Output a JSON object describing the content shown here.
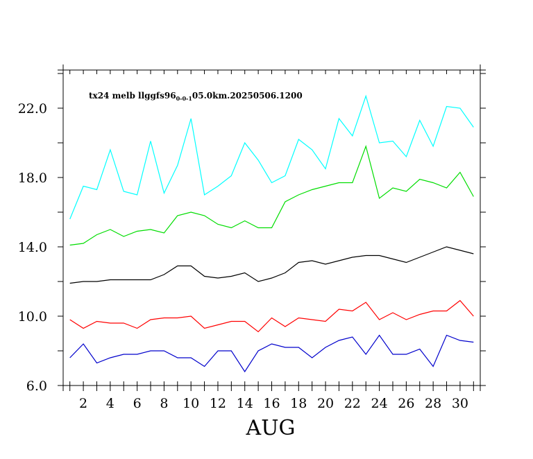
{
  "chart_data": {
    "type": "line",
    "title_main": "tx24 melb llggfs96",
    "title_sub": "0-0-1",
    "title_tail": "05.0km.20250506.1200",
    "xlabel": "AUG",
    "ylabel": "",
    "xlim": [
      0.5,
      31.5
    ],
    "ylim": [
      6.0,
      24.2
    ],
    "x_ticks_labeled": [
      2,
      4,
      6,
      8,
      10,
      12,
      14,
      16,
      18,
      20,
      22,
      24,
      26,
      28,
      30
    ],
    "x_tick_labels": [
      "2",
      "4",
      "6",
      "8",
      "10",
      "12",
      "14",
      "16",
      "18",
      "20",
      "22",
      "24",
      "26",
      "28",
      "30"
    ],
    "y_ticks": [
      6.0,
      10.0,
      14.0,
      18.0,
      22.0
    ],
    "y_tick_labels": [
      "6.0",
      "10.0",
      "14.0",
      "18.0",
      "22.0"
    ],
    "y_minor_ticks": [
      8.0,
      12.0,
      16.0,
      20.0,
      24.0
    ],
    "grid": false,
    "x": [
      1,
      2,
      3,
      4,
      5,
      6,
      7,
      8,
      9,
      10,
      11,
      12,
      13,
      14,
      15,
      16,
      17,
      18,
      19,
      20,
      21,
      22,
      23,
      24,
      25,
      26,
      27,
      28,
      29,
      30,
      31
    ],
    "series": [
      {
        "color": "#00ffff",
        "values": [
          15.6,
          17.5,
          17.3,
          19.6,
          17.2,
          17.0,
          20.1,
          17.1,
          18.7,
          21.4,
          17.0,
          17.5,
          18.1,
          20.0,
          19.0,
          17.7,
          18.1,
          20.2,
          19.6,
          18.5,
          21.4,
          20.4,
          22.7,
          20.0,
          20.1,
          19.2,
          21.3,
          19.8,
          22.1,
          22.0,
          20.9
        ]
      },
      {
        "color": "#00dd00",
        "values": [
          14.1,
          14.2,
          14.7,
          15.0,
          14.6,
          14.9,
          15.0,
          14.8,
          15.8,
          16.0,
          15.8,
          15.3,
          15.1,
          15.5,
          15.1,
          15.1,
          16.6,
          17.0,
          17.3,
          17.5,
          17.7,
          17.7,
          19.8,
          16.8,
          17.4,
          17.2,
          17.9,
          17.7,
          17.4,
          18.3,
          16.9
        ]
      },
      {
        "color": "#000000",
        "values": [
          11.9,
          12.0,
          12.0,
          12.1,
          12.1,
          12.1,
          12.1,
          12.4,
          12.9,
          12.9,
          12.3,
          12.2,
          12.3,
          12.5,
          12.0,
          12.2,
          12.5,
          13.1,
          13.2,
          13.0,
          13.2,
          13.4,
          13.5,
          13.5,
          13.3,
          13.1,
          13.4,
          13.7,
          14.0,
          13.8,
          13.6
        ]
      },
      {
        "color": "#ff0000",
        "values": [
          9.8,
          9.3,
          9.7,
          9.6,
          9.6,
          9.3,
          9.8,
          9.9,
          9.9,
          10.0,
          9.3,
          9.5,
          9.7,
          9.7,
          9.1,
          9.9,
          9.4,
          9.9,
          9.8,
          9.7,
          10.4,
          10.3,
          10.8,
          9.8,
          10.2,
          9.8,
          10.1,
          10.3,
          10.3,
          10.9,
          10.0
        ]
      },
      {
        "color": "#0000cc",
        "values": [
          7.6,
          8.4,
          7.3,
          7.6,
          7.8,
          7.8,
          8.0,
          8.0,
          7.6,
          7.6,
          7.1,
          8.0,
          8.0,
          6.8,
          8.0,
          8.4,
          8.2,
          8.2,
          7.6,
          8.2,
          8.6,
          8.8,
          7.8,
          8.9,
          7.8,
          7.8,
          8.1,
          7.1,
          8.9,
          8.6,
          8.5
        ]
      }
    ]
  }
}
